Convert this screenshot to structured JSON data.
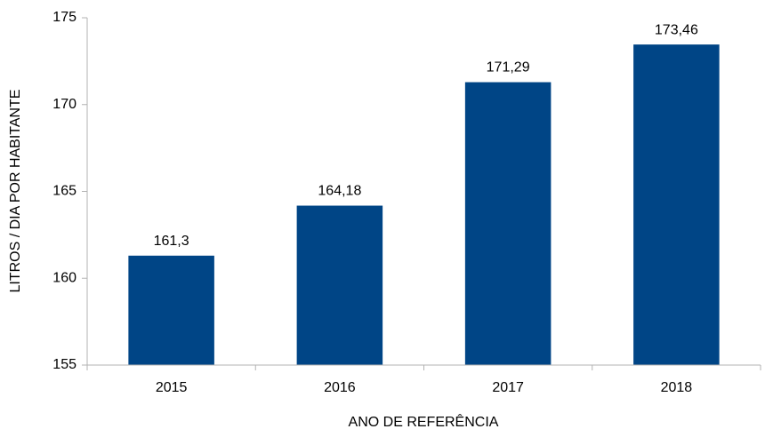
{
  "chart_data": {
    "type": "bar",
    "x_label": "ANO DE REFERÊNCIA",
    "y_label": "LITROS / DIA POR HABITANTE",
    "categories": [
      "2015",
      "2016",
      "2017",
      "2018"
    ],
    "values": [
      161.3,
      164.18,
      171.29,
      173.46
    ],
    "value_labels": [
      "161,3",
      "164,18",
      "171,29",
      "173,46"
    ],
    "color": "#004586",
    "ylim": [
      155,
      175
    ],
    "yticks": [
      155,
      160,
      165,
      170,
      175
    ],
    "grid": false
  }
}
